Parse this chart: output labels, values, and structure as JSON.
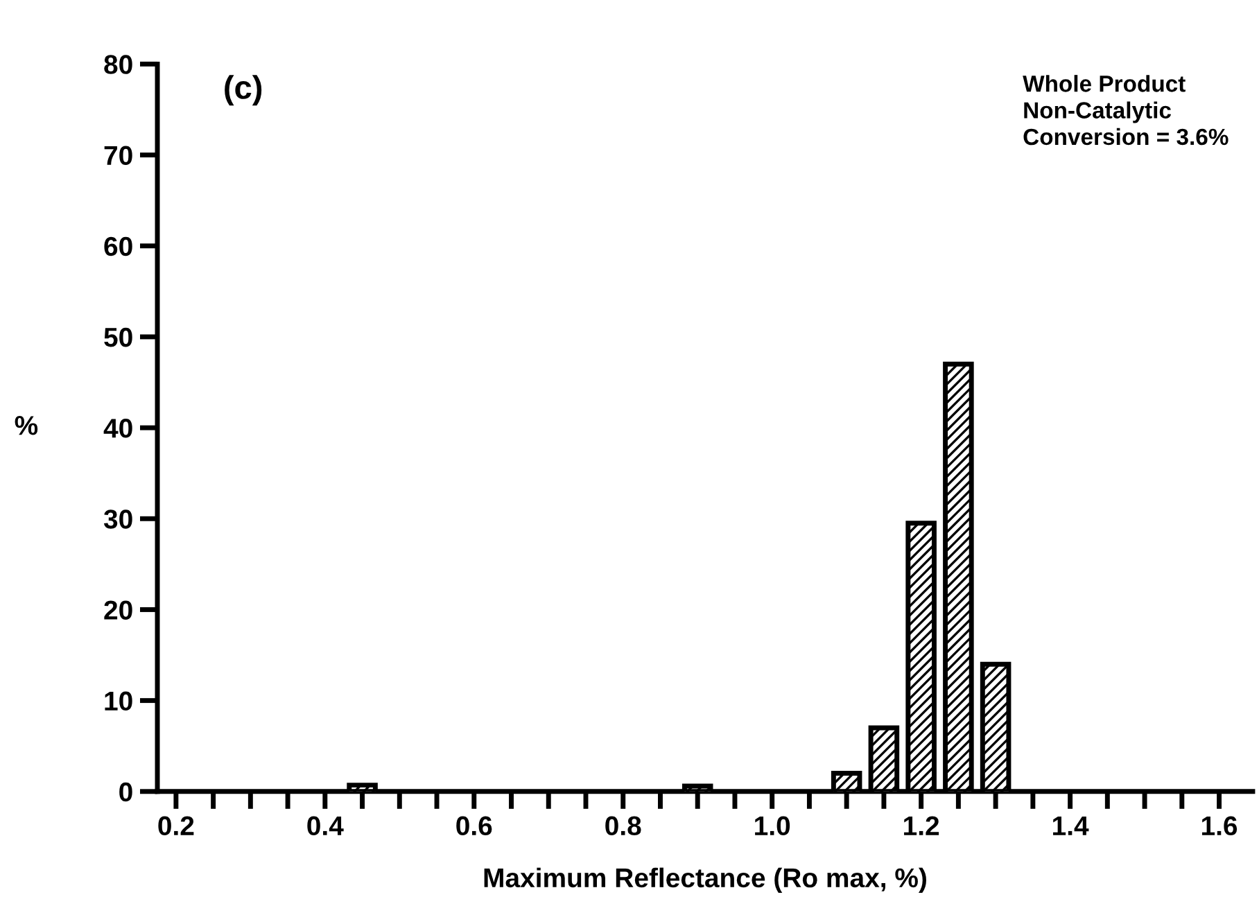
{
  "chart_data": {
    "type": "bar",
    "xlabel": "Maximum Reflectance (Ro max, %)",
    "ylabel": "%",
    "annotations": [
      "(c)",
      "Whole Product\nNon-Catalytic\nConversion = 3.6%"
    ],
    "x": [
      0.45,
      0.9,
      1.1,
      1.15,
      1.2,
      1.25,
      1.3
    ],
    "series": [
      {
        "color": "#000000",
        "values": [
          0.7,
          0.6,
          2,
          7,
          29.5,
          47,
          14
        ]
      }
    ],
    "xlim": [
      0.175,
      1.645
    ],
    "ylim": [
      0,
      80
    ],
    "xticks": [
      {
        "value": 0.2,
        "label": "0.2"
      },
      {
        "value": 0.25,
        "label": null
      },
      {
        "value": 0.3,
        "label": null
      },
      {
        "value": 0.35,
        "label": null
      },
      {
        "value": 0.4,
        "label": "0.4"
      },
      {
        "value": 0.45,
        "label": null
      },
      {
        "value": 0.5,
        "label": null
      },
      {
        "value": 0.55,
        "label": null
      },
      {
        "value": 0.6,
        "label": "0.6"
      },
      {
        "value": 0.65,
        "label": null
      },
      {
        "value": 0.7,
        "label": null
      },
      {
        "value": 0.75,
        "label": null
      },
      {
        "value": 0.8,
        "label": "0.8"
      },
      {
        "value": 0.85,
        "label": null
      },
      {
        "value": 0.9,
        "label": null
      },
      {
        "value": 0.95,
        "label": null
      },
      {
        "value": 1.0,
        "label": "1.0"
      },
      {
        "value": 1.05,
        "label": null
      },
      {
        "value": 1.1,
        "label": null
      },
      {
        "value": 1.15,
        "label": null
      },
      {
        "value": 1.2,
        "label": "1.2"
      },
      {
        "value": 1.25,
        "label": null
      },
      {
        "value": 1.3,
        "label": null
      },
      {
        "value": 1.35,
        "label": null
      },
      {
        "value": 1.4,
        "label": "1.4"
      },
      {
        "value": 1.45,
        "label": null
      },
      {
        "value": 1.5,
        "label": null
      },
      {
        "value": 1.55,
        "label": null
      },
      {
        "value": 1.6,
        "label": "1.6"
      }
    ],
    "yticks": [
      0,
      10,
      20,
      30,
      40,
      50,
      60,
      70,
      80
    ],
    "grid": false
  }
}
